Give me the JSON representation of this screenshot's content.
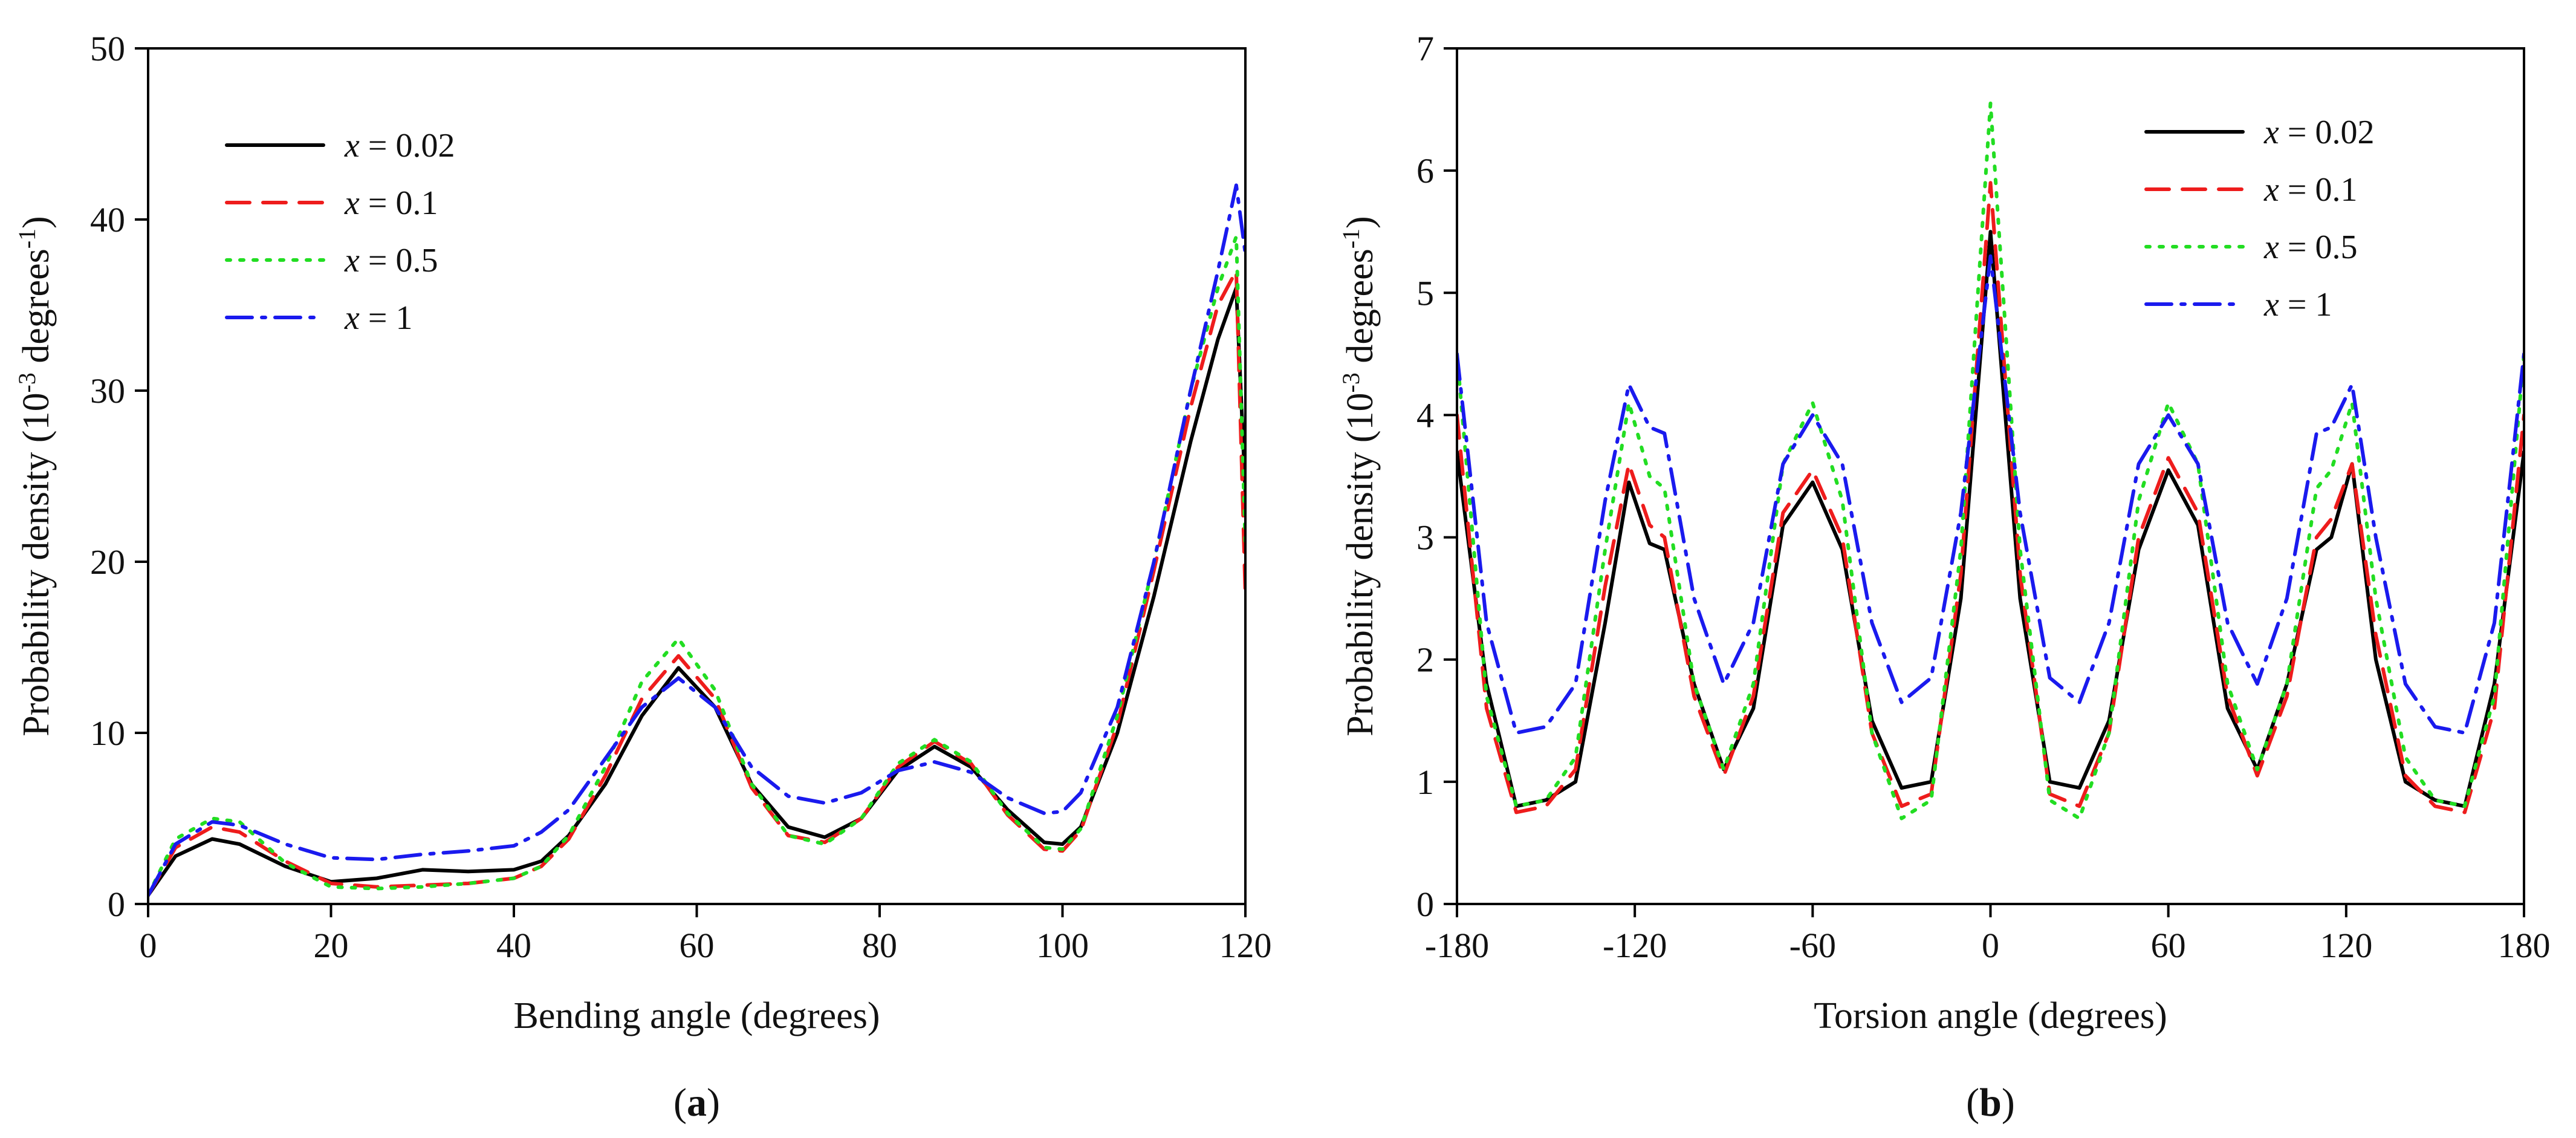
{
  "chart_data": [
    {
      "type": "line",
      "panel_label": "a",
      "xlabel": "Bending angle (degrees)",
      "ylabel": "Probability density (10",
      "ylabel_exp": "-3",
      "ylabel_unit": " degrees",
      "ylabel_unit_exp": "-1",
      "ylabel_close": ")",
      "xlim": [
        0,
        120
      ],
      "ylim": [
        0,
        50
      ],
      "xticks": [
        "0",
        "20",
        "40",
        "60",
        "80",
        "100",
        "120"
      ],
      "yticks": [
        "0",
        "10",
        "20",
        "30",
        "40",
        "50"
      ],
      "legend_position": "top-left",
      "series": [
        {
          "name": "x = 0.02",
          "var": "x",
          "value_label": " = 0.02",
          "color": "#000000",
          "dash": "solid",
          "x": [
            0,
            3,
            7,
            10,
            15,
            20,
            25,
            30,
            35,
            40,
            43,
            46,
            50,
            54,
            58,
            62,
            66,
            70,
            74,
            78,
            82,
            86,
            90,
            94,
            98,
            100,
            102,
            106,
            110,
            114,
            117,
            119,
            120
          ],
          "y": [
            0.5,
            2.8,
            3.8,
            3.5,
            2.2,
            1.3,
            1.5,
            2.0,
            1.9,
            2.0,
            2.5,
            4.0,
            7.0,
            11.0,
            13.8,
            11.5,
            7.0,
            4.5,
            3.9,
            5.0,
            7.8,
            9.2,
            8.0,
            5.5,
            3.6,
            3.5,
            4.5,
            10.0,
            18.0,
            27.0,
            33.0,
            36.0,
            24.0
          ]
        },
        {
          "name": "x = 0.1",
          "var": "x",
          "value_label": " = 0.1",
          "color": "#ee1c1c",
          "dash": "38,22",
          "x": [
            0,
            3,
            7,
            10,
            15,
            20,
            25,
            30,
            35,
            40,
            43,
            46,
            50,
            54,
            58,
            62,
            66,
            70,
            74,
            78,
            82,
            86,
            90,
            94,
            98,
            100,
            102,
            106,
            110,
            114,
            117,
            119,
            120
          ],
          "y": [
            0.5,
            3.3,
            4.5,
            4.2,
            2.5,
            1.2,
            1.0,
            1.1,
            1.2,
            1.5,
            2.2,
            3.8,
            7.5,
            12.0,
            14.5,
            12.0,
            6.8,
            4.0,
            3.6,
            5.0,
            8.0,
            9.5,
            8.2,
            5.2,
            3.2,
            3.1,
            4.3,
            10.5,
            19.5,
            29.0,
            35.0,
            37.0,
            18.0
          ]
        },
        {
          "name": "x = 0.5",
          "var": "x",
          "value_label": " = 0.5",
          "color": "#22dd22",
          "dash": "6,16",
          "x": [
            0,
            3,
            7,
            10,
            15,
            20,
            25,
            30,
            35,
            40,
            43,
            46,
            50,
            54,
            58,
            62,
            66,
            70,
            74,
            78,
            82,
            86,
            90,
            94,
            98,
            100,
            102,
            106,
            110,
            114,
            117,
            119,
            120
          ],
          "y": [
            0.5,
            3.8,
            5.0,
            4.8,
            2.4,
            1.0,
            0.9,
            1.0,
            1.2,
            1.5,
            2.2,
            4.0,
            8.0,
            13.0,
            15.5,
            12.5,
            7.0,
            4.0,
            3.5,
            5.0,
            8.2,
            9.6,
            8.3,
            5.3,
            3.3,
            3.2,
            4.4,
            11.0,
            20.0,
            30.0,
            36.0,
            39.0,
            21.0
          ]
        },
        {
          "name": "x = 1",
          "var": "x",
          "value_label": " = 1",
          "color": "#1a1aee",
          "dash": "42,16,6,16",
          "x": [
            0,
            3,
            7,
            10,
            15,
            20,
            25,
            30,
            35,
            40,
            43,
            46,
            50,
            54,
            58,
            62,
            66,
            70,
            74,
            78,
            82,
            86,
            90,
            94,
            98,
            100,
            102,
            106,
            110,
            114,
            117,
            119,
            120
          ],
          "y": [
            0.5,
            3.5,
            4.8,
            4.6,
            3.5,
            2.7,
            2.6,
            2.9,
            3.1,
            3.4,
            4.2,
            5.5,
            8.5,
            11.5,
            13.2,
            11.5,
            8.0,
            6.3,
            5.9,
            6.5,
            7.8,
            8.3,
            7.7,
            6.2,
            5.3,
            5.4,
            6.5,
            11.5,
            20.0,
            30.0,
            37.0,
            42.0,
            38.0
          ]
        }
      ]
    },
    {
      "type": "line",
      "panel_label": "b",
      "xlabel": "Torsion angle (degrees)",
      "ylabel": "Probability density (10",
      "ylabel_exp": "-3",
      "ylabel_unit": " degrees",
      "ylabel_unit_exp": "-1",
      "ylabel_close": ")",
      "xlim": [
        -180,
        180
      ],
      "ylim": [
        0,
        7
      ],
      "xticks": [
        "-180",
        "-120",
        "-60",
        "0",
        "60",
        "120",
        "180"
      ],
      "yticks": [
        "0",
        "1",
        "2",
        "3",
        "4",
        "5",
        "6",
        "7"
      ],
      "legend_position": "top-right",
      "series": [
        {
          "name": "x = 0.02",
          "var": "x",
          "value_label": " = 0.02",
          "color": "#000000",
          "dash": "solid",
          "x": [
            -180,
            -170,
            -160,
            -150,
            -140,
            -130,
            -122,
            -115,
            -110,
            -100,
            -90,
            -80,
            -70,
            -60,
            -50,
            -40,
            -30,
            -20,
            -10,
            0,
            10,
            20,
            30,
            40,
            50,
            60,
            70,
            80,
            90,
            100,
            110,
            115,
            122,
            130,
            140,
            150,
            160,
            170,
            180
          ],
          "y": [
            3.7,
            1.8,
            0.8,
            0.85,
            1.0,
            2.3,
            3.45,
            2.95,
            2.9,
            1.8,
            1.1,
            1.6,
            3.1,
            3.45,
            2.9,
            1.5,
            0.95,
            1.0,
            2.5,
            5.5,
            2.5,
            1.0,
            0.95,
            1.5,
            2.9,
            3.55,
            3.1,
            1.6,
            1.1,
            1.8,
            2.9,
            3.0,
            3.6,
            2.0,
            1.0,
            0.85,
            0.8,
            1.8,
            3.7
          ]
        },
        {
          "name": "x = 0.1",
          "var": "x",
          "value_label": " = 0.1",
          "color": "#ee1c1c",
          "dash": "38,22",
          "x": [
            -180,
            -170,
            -160,
            -150,
            -140,
            -130,
            -122,
            -115,
            -110,
            -100,
            -90,
            -80,
            -70,
            -60,
            -50,
            -40,
            -30,
            -20,
            -10,
            0,
            10,
            20,
            30,
            40,
            50,
            60,
            70,
            80,
            90,
            100,
            110,
            115,
            122,
            130,
            140,
            150,
            160,
            170,
            180
          ],
          "y": [
            4.0,
            1.6,
            0.75,
            0.8,
            1.1,
            2.6,
            3.6,
            3.1,
            3.0,
            1.7,
            1.05,
            1.7,
            3.2,
            3.55,
            3.0,
            1.4,
            0.8,
            0.9,
            2.7,
            5.9,
            2.7,
            0.9,
            0.8,
            1.4,
            3.0,
            3.65,
            3.2,
            1.7,
            1.05,
            1.7,
            3.0,
            3.15,
            3.6,
            2.2,
            1.05,
            0.8,
            0.75,
            1.6,
            4.0
          ]
        },
        {
          "name": "x = 0.5",
          "var": "x",
          "value_label": " = 0.5",
          "color": "#22dd22",
          "dash": "6,16",
          "x": [
            -180,
            -170,
            -160,
            -150,
            -140,
            -130,
            -122,
            -115,
            -110,
            -100,
            -90,
            -80,
            -70,
            -60,
            -50,
            -40,
            -30,
            -20,
            -10,
            0,
            10,
            20,
            30,
            40,
            50,
            60,
            70,
            80,
            90,
            100,
            110,
            115,
            122,
            130,
            140,
            150,
            160,
            170,
            180
          ],
          "y": [
            4.5,
            1.7,
            0.8,
            0.85,
            1.2,
            2.9,
            4.1,
            3.5,
            3.4,
            1.8,
            1.1,
            1.8,
            3.6,
            4.1,
            3.3,
            1.4,
            0.7,
            0.85,
            2.9,
            6.55,
            2.9,
            0.85,
            0.7,
            1.4,
            3.3,
            4.1,
            3.6,
            1.8,
            1.1,
            1.8,
            3.4,
            3.55,
            4.1,
            2.5,
            1.2,
            0.85,
            0.8,
            1.7,
            4.5
          ]
        },
        {
          "name": "x = 1",
          "var": "x",
          "value_label": " = 1",
          "color": "#1a1aee",
          "dash": "42,16,6,16",
          "x": [
            -180,
            -170,
            -160,
            -150,
            -140,
            -130,
            -122,
            -115,
            -110,
            -100,
            -90,
            -80,
            -70,
            -60,
            -50,
            -40,
            -30,
            -20,
            -10,
            0,
            10,
            20,
            30,
            40,
            50,
            60,
            70,
            80,
            90,
            100,
            110,
            115,
            122,
            130,
            140,
            150,
            160,
            170,
            180
          ],
          "y": [
            4.5,
            2.3,
            1.4,
            1.45,
            1.8,
            3.3,
            4.25,
            3.9,
            3.85,
            2.5,
            1.8,
            2.3,
            3.6,
            4.0,
            3.6,
            2.3,
            1.65,
            1.85,
            3.2,
            5.3,
            3.2,
            1.85,
            1.65,
            2.3,
            3.6,
            4.0,
            3.6,
            2.3,
            1.8,
            2.5,
            3.85,
            3.9,
            4.25,
            3.0,
            1.8,
            1.45,
            1.4,
            2.3,
            4.5
          ]
        }
      ]
    }
  ]
}
